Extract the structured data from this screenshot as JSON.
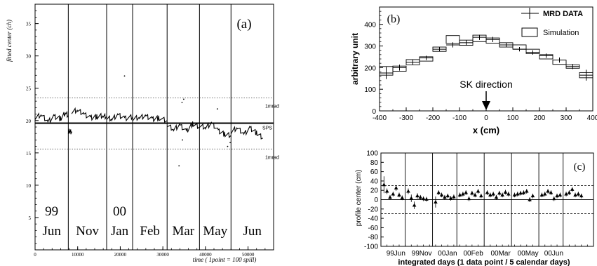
{
  "chart_data": [
    {
      "id": "a",
      "type": "scatter",
      "panel_label": "(a)",
      "xlabel": "time ( 1point = 100 spill)",
      "ylabel": "fitted center (ch)",
      "xlim": [
        0,
        56000
      ],
      "ylim": [
        0,
        38
      ],
      "x_ticks": [
        "0",
        "10000",
        "20000",
        "30000",
        "40000",
        "50000"
      ],
      "y_ticks": [
        "5",
        "10",
        "15",
        "20",
        "25",
        "30",
        "35"
      ],
      "center_line": {
        "y": 19.6,
        "label": "SPS"
      },
      "band_upper": {
        "y": 23.5,
        "label": "1mrad"
      },
      "band_lower": {
        "y": 15.6,
        "label": "1mrad"
      },
      "period_boundaries": [
        7800,
        16800,
        22900,
        31000,
        38600,
        46000
      ],
      "periods": [
        {
          "top": "99",
          "bottom": "Jun"
        },
        {
          "top": "",
          "bottom": "Nov"
        },
        {
          "top": "00",
          "bottom": "Jan"
        },
        {
          "top": "",
          "bottom": "Feb"
        },
        {
          "top": "",
          "bottom": "Mar"
        },
        {
          "top": "",
          "bottom": "May"
        },
        {
          "top": "",
          "bottom": "Jun"
        }
      ],
      "segments": [
        {
          "x": [
            0,
            1500,
            3000,
            4500,
            6000,
            7200,
            7800
          ],
          "y": [
            20.5,
            20.9,
            19.8,
            20.6,
            20.3,
            21.3,
            20.6
          ]
        },
        {
          "x": [
            7800,
            8200,
            8600
          ],
          "y": [
            18.3,
            18.4,
            18.1
          ]
        },
        {
          "x": [
            8600,
            10000,
            11500,
            13000,
            14500,
            16000,
            16800
          ],
          "y": [
            21.4,
            21.6,
            21.0,
            20.4,
            20.6,
            20.8,
            20.5
          ]
        },
        {
          "x": [
            16800,
            18000,
            19500,
            21000,
            22900
          ],
          "y": [
            20.5,
            20.2,
            20.9,
            20.3,
            20.6
          ]
        },
        {
          "x": [
            22900,
            24500,
            26000,
            27500,
            29000,
            31000
          ],
          "y": [
            20.3,
            20.5,
            20.7,
            20.2,
            20.4,
            20.0
          ]
        },
        {
          "x": [
            31000,
            32500,
            34000,
            35500,
            37000,
            38600
          ],
          "y": [
            19.4,
            18.6,
            19.3,
            18.3,
            19.5,
            19.0
          ]
        },
        {
          "x": [
            38600,
            40000,
            41500,
            43000,
            44500,
            46000
          ],
          "y": [
            19.3,
            18.9,
            19.6,
            18.4,
            17.9,
            17.7
          ]
        },
        {
          "x": [
            46000,
            47500,
            49000,
            50500,
            52000,
            53500
          ],
          "y": [
            18.3,
            18.9,
            17.9,
            18.8,
            18.1,
            17.3
          ]
        }
      ],
      "outliers": [
        {
          "x": [
            34500,
            34900,
            34600
          ],
          "y": [
            22.8,
            23.3,
            17.0
          ]
        },
        {
          "x": [
            45200,
            45800,
            42800
          ],
          "y": [
            16.0,
            16.6,
            21.8
          ]
        },
        {
          "x": [
            21000,
            33800
          ],
          "y": [
            26.9,
            13.0
          ]
        }
      ]
    },
    {
      "id": "b",
      "type": "bar",
      "panel_label": "(b)",
      "xlabel": "x (cm)",
      "ylabel": "arbitrary unit",
      "xlim": [
        -400,
        400
      ],
      "ylim": [
        0,
        480
      ],
      "x_ticks": [
        "-400",
        "-300",
        "-200",
        "-100",
        "0",
        "100",
        "200",
        "300",
        "400"
      ],
      "y_ticks": [
        "0",
        "100",
        "200",
        "300",
        "400"
      ],
      "bin_edges": [
        -400,
        -350,
        -300,
        -250,
        -200,
        -150,
        -100,
        -50,
        0,
        50,
        100,
        150,
        200,
        250,
        300,
        350,
        400
      ],
      "series": [
        {
          "name": "MRD DATA",
          "values": [
            175,
            200,
            225,
            245,
            285,
            305,
            315,
            340,
            330,
            305,
            285,
            270,
            255,
            235,
            205,
            165
          ],
          "errors": [
            28,
            14,
            12,
            10,
            10,
            12,
            12,
            12,
            12,
            10,
            10,
            10,
            10,
            12,
            12,
            25
          ]
        },
        {
          "name": "Simulation",
          "values": [
            185,
            195,
            225,
            240,
            285,
            330,
            315,
            335,
            325,
            305,
            295,
            275,
            250,
            225,
            205,
            165
          ],
          "half_height": [
            20,
            12,
            12,
            10,
            10,
            18,
            12,
            15,
            12,
            10,
            10,
            10,
            10,
            10,
            8,
            12
          ]
        }
      ],
      "annotation": {
        "text": "SK direction",
        "x": 0
      }
    },
    {
      "id": "c",
      "type": "scatter",
      "panel_label": "(c)",
      "xlabel": "integrated days (1 data point / 5 calendar days)",
      "ylabel": "profile center (cm)",
      "xlim": [
        0,
        70
      ],
      "ylim": [
        -100,
        100
      ],
      "y_ticks": [
        "100",
        "80",
        "60",
        "40",
        "20",
        "0",
        "-20",
        "-40",
        "-60",
        "-80",
        "-100"
      ],
      "x_tick_labels": [
        "99Jun",
        "99Nov",
        "00Jan",
        "00Feb",
        "00Mar",
        "00May",
        "00Jun"
      ],
      "band": [
        -30,
        30
      ],
      "period_boundaries": [
        8,
        17,
        25,
        34,
        43,
        52,
        60
      ],
      "points": {
        "x": [
          1,
          2,
          3,
          4,
          5,
          6,
          7,
          9,
          10,
          11,
          12,
          13,
          14,
          15,
          18,
          19,
          20,
          21,
          22,
          23,
          24,
          26,
          27,
          28,
          29,
          30,
          31,
          32,
          33,
          35,
          36,
          37,
          38,
          39,
          40,
          41,
          42,
          44,
          45,
          46,
          47,
          48,
          49,
          50,
          53,
          54,
          55,
          56,
          57,
          58,
          59,
          61,
          62,
          63,
          64,
          65,
          66
        ],
        "y": [
          32,
          18,
          5,
          12,
          25,
          10,
          4,
          18,
          3,
          -12,
          8,
          5,
          2,
          1,
          -5,
          15,
          10,
          5,
          8,
          3,
          6,
          10,
          12,
          15,
          2,
          14,
          10,
          18,
          8,
          15,
          10,
          12,
          5,
          14,
          10,
          16,
          12,
          10,
          12,
          14,
          15,
          18,
          0,
          8,
          10,
          12,
          18,
          15,
          2,
          8,
          10,
          12,
          15,
          22,
          10,
          12,
          8
        ],
        "err": [
          18,
          6,
          5,
          5,
          6,
          5,
          5,
          6,
          8,
          8,
          6,
          5,
          5,
          5,
          12,
          5,
          5,
          5,
          5,
          5,
          5,
          5,
          5,
          5,
          5,
          5,
          5,
          5,
          5,
          5,
          5,
          5,
          5,
          5,
          5,
          5,
          5,
          5,
          5,
          5,
          5,
          5,
          5,
          5,
          5,
          5,
          5,
          5,
          5,
          5,
          5,
          5,
          5,
          5,
          5,
          5,
          5
        ]
      }
    }
  ]
}
